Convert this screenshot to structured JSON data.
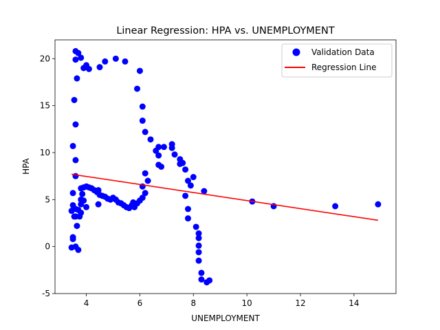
{
  "chart_data": {
    "type": "scatter",
    "title": "Linear Regression: HPA vs. UNEMPLOYMENT",
    "xlabel": "UNEMPLOYMENT",
    "ylabel": "HPA",
    "xlim": [
      2.83,
      15.57
    ],
    "ylim": [
      -5,
      22
    ],
    "xticks": [
      4,
      6,
      8,
      10,
      12,
      14
    ],
    "yticks": [
      -5,
      0,
      5,
      10,
      15,
      20
    ],
    "grid": false,
    "legend_position": "top-right",
    "colors": {
      "points": "#0000ff",
      "line": "#ff0000"
    },
    "series": [
      {
        "name": "Validation Data",
        "kind": "scatter",
        "points": [
          [
            3.45,
            -0.1
          ],
          [
            3.5,
            0.8
          ],
          [
            3.5,
            1.0
          ],
          [
            3.6,
            0.0
          ],
          [
            3.7,
            -0.35
          ],
          [
            3.55,
            15.6
          ],
          [
            3.5,
            10.7
          ],
          [
            3.6,
            13.0
          ],
          [
            3.6,
            9.2
          ],
          [
            3.6,
            7.5
          ],
          [
            3.6,
            20.8
          ],
          [
            3.7,
            20.6
          ],
          [
            3.6,
            19.9
          ],
          [
            3.8,
            20.1
          ],
          [
            3.9,
            19.0
          ],
          [
            4.0,
            19.3
          ],
          [
            4.1,
            18.9
          ],
          [
            3.65,
            17.9
          ],
          [
            4.5,
            19.1
          ],
          [
            4.7,
            19.7
          ],
          [
            5.1,
            20.0
          ],
          [
            5.45,
            19.7
          ],
          [
            5.9,
            16.8
          ],
          [
            6.0,
            18.7
          ],
          [
            3.45,
            3.8
          ],
          [
            3.5,
            4.4
          ],
          [
            3.55,
            3.2
          ],
          [
            3.5,
            5.7
          ],
          [
            3.6,
            4.0
          ],
          [
            3.6,
            3.2
          ],
          [
            3.65,
            2.2
          ],
          [
            3.7,
            3.9
          ],
          [
            3.75,
            3.2
          ],
          [
            3.8,
            3.6
          ],
          [
            3.8,
            4.5
          ],
          [
            3.8,
            5.0
          ],
          [
            3.85,
            5.6
          ],
          [
            3.8,
            6.2
          ],
          [
            3.9,
            4.9
          ],
          [
            3.9,
            6.3
          ],
          [
            4.0,
            4.2
          ],
          [
            4.0,
            6.4
          ],
          [
            4.1,
            6.3
          ],
          [
            4.2,
            6.2
          ],
          [
            4.3,
            6.0
          ],
          [
            4.4,
            5.8
          ],
          [
            4.45,
            6.0
          ],
          [
            4.5,
            5.5
          ],
          [
            4.45,
            4.5
          ],
          [
            4.6,
            5.4
          ],
          [
            4.7,
            5.3
          ],
          [
            4.8,
            5.1
          ],
          [
            4.9,
            5.0
          ],
          [
            5.0,
            5.2
          ],
          [
            5.1,
            5.0
          ],
          [
            5.2,
            4.7
          ],
          [
            5.3,
            4.6
          ],
          [
            5.4,
            4.4
          ],
          [
            5.5,
            4.2
          ],
          [
            5.6,
            4.1
          ],
          [
            5.7,
            4.4
          ],
          [
            5.75,
            4.7
          ],
          [
            5.8,
            4.2
          ],
          [
            5.9,
            4.6
          ],
          [
            6.0,
            4.9
          ],
          [
            6.1,
            5.2
          ],
          [
            6.1,
            6.4
          ],
          [
            6.2,
            5.7
          ],
          [
            6.2,
            7.8
          ],
          [
            6.3,
            7.0
          ],
          [
            6.1,
            13.4
          ],
          [
            6.1,
            14.9
          ],
          [
            6.2,
            12.2
          ],
          [
            6.4,
            11.4
          ],
          [
            6.6,
            10.2
          ],
          [
            6.7,
            10.6
          ],
          [
            6.7,
            9.7
          ],
          [
            6.7,
            8.7
          ],
          [
            6.8,
            8.5
          ],
          [
            6.9,
            10.6
          ],
          [
            7.2,
            10.9
          ],
          [
            7.2,
            10.5
          ],
          [
            7.3,
            9.8
          ],
          [
            7.5,
            9.3
          ],
          [
            7.5,
            8.8
          ],
          [
            7.6,
            8.9
          ],
          [
            7.7,
            8.2
          ],
          [
            7.8,
            7.0
          ],
          [
            7.9,
            6.5
          ],
          [
            8.0,
            7.4
          ],
          [
            7.7,
            5.4
          ],
          [
            7.8,
            4.0
          ],
          [
            7.8,
            3.0
          ],
          [
            8.1,
            2.1
          ],
          [
            8.2,
            1.4
          ],
          [
            8.2,
            0.9
          ],
          [
            8.2,
            0.1
          ],
          [
            8.2,
            -0.6
          ],
          [
            8.2,
            -1.5
          ],
          [
            8.3,
            -2.8
          ],
          [
            8.3,
            -3.5
          ],
          [
            8.5,
            -3.8
          ],
          [
            8.6,
            -3.6
          ],
          [
            8.4,
            5.9
          ],
          [
            10.2,
            4.8
          ],
          [
            11.0,
            4.3
          ],
          [
            13.3,
            4.3
          ],
          [
            14.9,
            4.5
          ]
        ]
      },
      {
        "name": "Regression Line",
        "kind": "line",
        "points": [
          [
            3.45,
            7.7
          ],
          [
            14.9,
            2.8
          ]
        ]
      }
    ]
  }
}
